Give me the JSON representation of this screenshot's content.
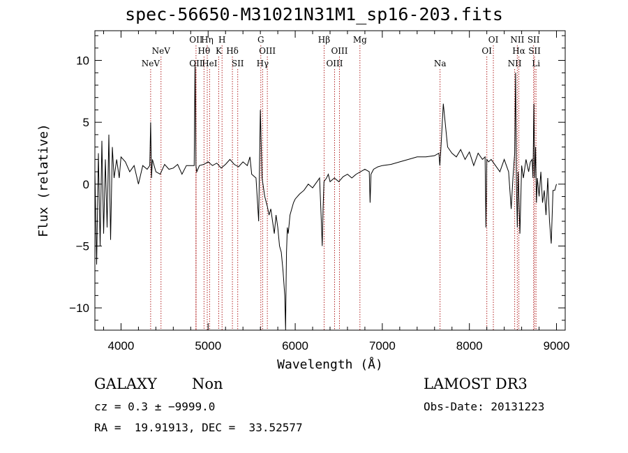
{
  "chart_data": {
    "type": "line",
    "title": "spec-56650-M31021N31M1_sp16-203.fits",
    "xlabel": "Wavelength (Å)",
    "ylabel": "Flux (relative)",
    "xlim": [
      3700,
      9100
    ],
    "ylim": [
      -11.8,
      12.4
    ],
    "x_ticks": [
      4000,
      5000,
      6000,
      7000,
      8000,
      9000
    ],
    "y_ticks": [
      -10,
      -5,
      0,
      5,
      10
    ],
    "x_tick_labels": [
      "4000",
      "5000",
      "6000",
      "7000",
      "8000",
      "9000"
    ],
    "y_tick_labels": [
      "−10",
      "−5",
      "0",
      "5",
      "10"
    ],
    "series": [
      {
        "name": "spectrum",
        "x": [
          3700,
          3720,
          3740,
          3760,
          3780,
          3800,
          3820,
          3840,
          3860,
          3880,
          3900,
          3920,
          3950,
          3980,
          4000,
          4050,
          4100,
          4150,
          4200,
          4250,
          4300,
          4330,
          4340,
          4350,
          4360,
          4400,
          4450,
          4500,
          4550,
          4600,
          4650,
          4700,
          4750,
          4800,
          4840,
          4850,
          4860,
          4870,
          4900,
          4950,
          5000,
          5050,
          5100,
          5150,
          5200,
          5250,
          5300,
          5350,
          5400,
          5450,
          5480,
          5500,
          5550,
          5580,
          5600,
          5620,
          5650,
          5680,
          5700,
          5720,
          5740,
          5760,
          5780,
          5800,
          5820,
          5840,
          5860,
          5880,
          5890,
          5895,
          5900,
          5910,
          5920,
          5940,
          5960,
          5980,
          6000,
          6050,
          6100,
          6150,
          6200,
          6250,
          6280,
          6300,
          6310,
          6320,
          6330,
          6340,
          6360,
          6380,
          6400,
          6450,
          6500,
          6550,
          6600,
          6650,
          6700,
          6750,
          6800,
          6850,
          6860,
          6870,
          6900,
          6950,
          7000,
          7100,
          7200,
          7300,
          7400,
          7500,
          7600,
          7650,
          7660,
          7670,
          7700,
          7750,
          7800,
          7850,
          7900,
          7950,
          8000,
          8050,
          8100,
          8150,
          8180,
          8190,
          8200,
          8220,
          8250,
          8300,
          8350,
          8400,
          8450,
          8480,
          8500,
          8520,
          8530,
          8540,
          8550,
          8560,
          8580,
          8600,
          8620,
          8650,
          8680,
          8700,
          8720,
          8730,
          8740,
          8750,
          8760,
          8770,
          8780,
          8800,
          8820,
          8840,
          8860,
          8880,
          8900,
          8920,
          8940,
          8960,
          8980,
          9000
        ],
        "values": [
          1.0,
          -6.5,
          2.5,
          -5.0,
          3.5,
          -4.0,
          2.0,
          -3.5,
          4.0,
          -4.5,
          3.0,
          0.5,
          2.0,
          0.5,
          2.2,
          1.8,
          1.0,
          1.5,
          0.0,
          1.5,
          1.2,
          1.5,
          5.0,
          0.5,
          2.0,
          1.0,
          0.8,
          1.6,
          1.2,
          1.3,
          1.6,
          0.8,
          1.5,
          1.5,
          1.5,
          10.0,
          1.5,
          1.0,
          1.5,
          1.6,
          1.8,
          1.5,
          1.7,
          1.3,
          1.6,
          2.0,
          1.6,
          1.4,
          1.8,
          1.5,
          2.2,
          0.8,
          0.5,
          -3.0,
          6.0,
          0.5,
          -1.0,
          -1.8,
          -2.5,
          -2.0,
          -3.0,
          -4.0,
          -2.5,
          -3.5,
          -5.0,
          -5.5,
          -7.0,
          -9.0,
          -11.8,
          -8.0,
          -5.5,
          -3.5,
          -4.0,
          -2.5,
          -2.0,
          -1.5,
          -1.2,
          -0.8,
          -0.5,
          0.0,
          -0.3,
          0.2,
          0.5,
          -3.0,
          -5.0,
          -2.0,
          0.2,
          0.3,
          0.5,
          0.8,
          0.2,
          0.5,
          0.2,
          0.6,
          0.8,
          0.5,
          0.8,
          1.0,
          1.2,
          1.0,
          -1.5,
          0.8,
          1.2,
          1.4,
          1.5,
          1.6,
          1.8,
          2.0,
          2.2,
          2.2,
          2.3,
          2.5,
          1.5,
          2.5,
          6.5,
          3.0,
          2.5,
          2.2,
          2.8,
          2.0,
          2.6,
          1.5,
          2.5,
          2.0,
          2.2,
          -3.5,
          2.0,
          1.8,
          2.0,
          1.5,
          1.0,
          2.0,
          1.0,
          -2.0,
          0.5,
          2.5,
          9.0,
          0.0,
          -3.5,
          1.0,
          -4.0,
          1.5,
          0.5,
          2.0,
          1.0,
          1.8,
          2.0,
          0.5,
          6.5,
          0.5,
          3.0,
          -1.5,
          0.5,
          -1.0,
          1.0,
          -1.5,
          -0.5,
          -2.5,
          0.5,
          -3.0,
          -4.8,
          -0.5,
          -0.5,
          0.0
        ]
      }
    ],
    "emission_lines": [
      {
        "wavelength": 4340,
        "label": "NeV",
        "row": 2
      },
      {
        "wavelength": 4459,
        "label": "NeV",
        "row": 1
      },
      {
        "wavelength": 4861,
        "label": "OII",
        "row": 0
      },
      {
        "wavelength": 4861,
        "label": "OII",
        "row": 2
      },
      {
        "wavelength": 4953,
        "label": "Hθ",
        "row": 1
      },
      {
        "wavelength": 4990,
        "label": "Hη",
        "row": 0
      },
      {
        "wavelength": 5017,
        "label": "HeI",
        "row": 2
      },
      {
        "wavelength": 5122,
        "label": "K",
        "row": 1
      },
      {
        "wavelength": 5160,
        "label": "H",
        "row": 0
      },
      {
        "wavelength": 5279,
        "label": "Hδ",
        "row": 1
      },
      {
        "wavelength": 5340,
        "label": "SII",
        "row": 2
      },
      {
        "wavelength": 5605,
        "label": "G",
        "row": 0
      },
      {
        "wavelength": 5626,
        "label": "Hγ",
        "row": 2
      },
      {
        "wavelength": 5680,
        "label": "OIII",
        "row": 1
      },
      {
        "wavelength": 6332,
        "label": "Hβ",
        "row": 0
      },
      {
        "wavelength": 6452,
        "label": "OIII",
        "row": 2
      },
      {
        "wavelength": 6508,
        "label": "OIII",
        "row": 1
      },
      {
        "wavelength": 6743,
        "label": "Mg",
        "row": 0
      },
      {
        "wavelength": 7663,
        "label": "Na",
        "row": 2
      },
      {
        "wavelength": 8200,
        "label": "OI",
        "row": 1
      },
      {
        "wavelength": 8275,
        "label": "OI",
        "row": 0
      },
      {
        "wavelength": 8520,
        "label": "NII",
        "row": 2
      },
      {
        "wavelength": 8550,
        "label": "NII",
        "row": 0
      },
      {
        "wavelength": 8568,
        "label": "Hα",
        "row": 1
      },
      {
        "wavelength": 8737,
        "label": "SII",
        "row": 0
      },
      {
        "wavelength": 8748,
        "label": "SII",
        "row": 1
      },
      {
        "wavelength": 8765,
        "label": "Li",
        "row": 2
      }
    ]
  },
  "footer": {
    "object_class": "GALAXY",
    "subclass": "Non",
    "survey": "LAMOST DR3",
    "cz": "cz = 0.3 ± −9999.0",
    "obs_date": "Obs-Date: 20131223",
    "radec": "RA =  19.91913, DEC =  33.52577"
  },
  "colors": {
    "line": "#000000",
    "marker_lines": "#b22222",
    "axes": "#000000"
  }
}
